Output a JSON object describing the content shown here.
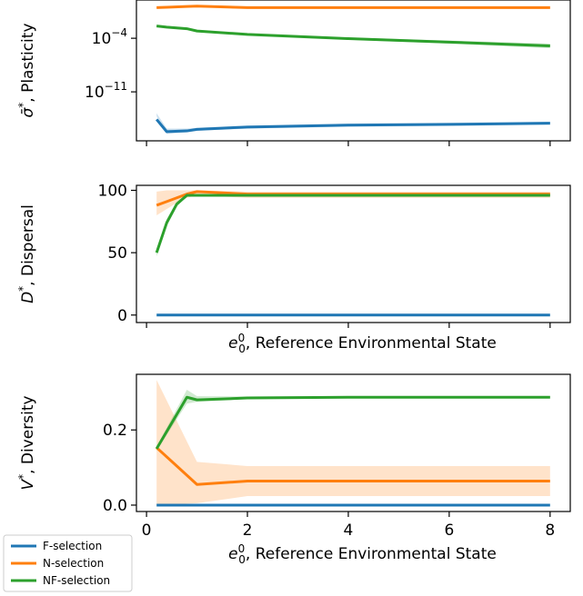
{
  "colors": {
    "F-selection": "#1f77b4",
    "N-selection": "#ff7f0e",
    "NF-selection": "#2ca02c"
  },
  "legend": {
    "placement": "below-left",
    "entries": [
      "F-selection",
      "N-selection",
      "NF-selection"
    ]
  },
  "chart_data": [
    {
      "type": "line",
      "ylabel": "σ̄*, Plasticity",
      "xlabel": "",
      "yscale": "log",
      "xlim": [
        -0.2,
        8.4
      ],
      "ylim_log10": [
        -17.4,
        1.0
      ],
      "xticks": [
        0,
        2,
        4,
        6,
        8
      ],
      "xticklabels_shown": false,
      "yticks": [
        {
          "value_log10": -4,
          "label_base": "10",
          "label_exp": "−4"
        },
        {
          "value_log10": -11,
          "label_base": "10",
          "label_exp": "−11"
        }
      ],
      "series": [
        {
          "name": "F-selection",
          "x": [
            0.2,
            0.4,
            0.8,
            1.0,
            2.0,
            4.0,
            6.0,
            8.0
          ],
          "log10_y": [
            -14.6,
            -16.2,
            -16.1,
            -15.9,
            -15.6,
            -15.35,
            -15.25,
            -15.1
          ],
          "log10_band_low": [
            -14.2,
            -16.5,
            -16.3,
            -16.1,
            -15.8,
            -15.55,
            -15.45,
            -15.3
          ],
          "log10_band_high": [
            -13.8,
            -15.8,
            -15.8,
            -15.7,
            -15.4,
            -15.15,
            -15.05,
            -14.9
          ]
        },
        {
          "name": "N-selection",
          "x": [
            0.2,
            0.4,
            0.8,
            1.0,
            2.0,
            4.0,
            6.0,
            8.0
          ],
          "log10_y": [
            0.0,
            0.05,
            0.15,
            0.2,
            0.0,
            0.0,
            0.0,
            0.0
          ],
          "log10_band_low": [
            -0.15,
            -0.1,
            0.0,
            0.05,
            -0.15,
            -0.15,
            -0.15,
            -0.15
          ],
          "log10_band_high": [
            0.15,
            0.2,
            0.3,
            0.35,
            0.15,
            0.15,
            0.15,
            0.15
          ]
        },
        {
          "name": "NF-selection",
          "x": [
            0.2,
            0.4,
            0.8,
            1.0,
            2.0,
            4.0,
            6.0,
            8.0
          ],
          "log10_y": [
            -2.4,
            -2.55,
            -2.75,
            -3.05,
            -3.5,
            -4.05,
            -4.5,
            -5.0
          ],
          "log10_band_low": [
            -2.55,
            -2.7,
            -2.9,
            -3.2,
            -3.65,
            -4.2,
            -4.7,
            -5.3
          ],
          "log10_band_high": [
            -2.25,
            -2.4,
            -2.6,
            -2.9,
            -3.35,
            -3.9,
            -4.3,
            -4.7
          ]
        }
      ]
    },
    {
      "type": "line",
      "ylabel": "D*, Dispersal",
      "xlabel": "e₀⁰, Reference Environmental State",
      "xlim": [
        -0.2,
        8.4
      ],
      "ylim": [
        -6,
        104
      ],
      "xticks": [
        0,
        2,
        4,
        6,
        8
      ],
      "xticklabels_shown": false,
      "yticks": [
        0,
        50,
        100
      ],
      "series": [
        {
          "name": "F-selection",
          "x": [
            0.2,
            0.4,
            0.6,
            0.8,
            1.0,
            2.0,
            4.0,
            6.0,
            8.0
          ],
          "y": [
            0,
            0,
            0,
            0,
            0,
            0,
            0,
            0,
            0
          ],
          "band_low": [
            0,
            0,
            0,
            0,
            0,
            0,
            0,
            0,
            0
          ],
          "band_high": [
            0,
            0,
            0,
            0,
            0,
            0,
            0,
            0,
            0
          ]
        },
        {
          "name": "N-selection",
          "x": [
            0.2,
            0.4,
            0.6,
            0.8,
            1.0,
            2.0,
            4.0,
            6.0,
            8.0
          ],
          "y": [
            88,
            91,
            94,
            97,
            99,
            97,
            97,
            97,
            97
          ],
          "band_low": [
            80,
            85,
            90,
            94,
            96,
            94,
            94,
            94,
            94
          ],
          "band_high": [
            99,
            100,
            100,
            100,
            100,
            99,
            99,
            99,
            99
          ]
        },
        {
          "name": "NF-selection",
          "x": [
            0.2,
            0.4,
            0.6,
            0.8,
            1.0,
            2.0,
            4.0,
            6.0,
            8.0
          ],
          "y": [
            50,
            74,
            89,
            96,
            96,
            96,
            96,
            96,
            96
          ],
          "band_low": [
            47,
            71,
            87,
            95,
            95,
            95,
            95,
            95,
            95
          ],
          "band_high": [
            53,
            77,
            91,
            97,
            97,
            97,
            97,
            97,
            97
          ]
        }
      ]
    },
    {
      "type": "line",
      "ylabel": "V*, Diversity",
      "xlabel": "e₀⁰, Reference Environmental State",
      "xlim": [
        -0.2,
        8.4
      ],
      "ylim": [
        -0.017,
        0.348
      ],
      "xticks": [
        0,
        2,
        4,
        6,
        8
      ],
      "xticklabels": [
        "0",
        "2",
        "4",
        "6",
        "8"
      ],
      "yticks": [
        0.0,
        0.2
      ],
      "yticklabels": [
        "0.0",
        "0.2"
      ],
      "series": [
        {
          "name": "F-selection",
          "x": [
            0.2,
            1.0,
            2.0,
            4.0,
            6.0,
            8.0
          ],
          "y": [
            0,
            0,
            0,
            0,
            0,
            0
          ],
          "band_low": [
            0,
            0,
            0,
            0,
            0,
            0
          ],
          "band_high": [
            0,
            0,
            0,
            0,
            0,
            0
          ]
        },
        {
          "name": "N-selection",
          "x": [
            0.2,
            1.0,
            2.0,
            4.0,
            6.0,
            8.0
          ],
          "y": [
            0.153,
            0.055,
            0.064,
            0.064,
            0.064,
            0.064
          ],
          "band_low": [
            0.0,
            0.005,
            0.024,
            0.024,
            0.024,
            0.024
          ],
          "band_high": [
            0.333,
            0.115,
            0.104,
            0.104,
            0.104,
            0.104
          ]
        },
        {
          "name": "NF-selection",
          "x": [
            0.2,
            0.8,
            1.0,
            2.0,
            4.0,
            6.0,
            8.0
          ],
          "y": [
            0.15,
            0.287,
            0.28,
            0.285,
            0.287,
            0.287,
            0.287
          ],
          "band_low": [
            0.145,
            0.27,
            0.275,
            0.282,
            0.285,
            0.285,
            0.285
          ],
          "band_high": [
            0.155,
            0.307,
            0.29,
            0.289,
            0.29,
            0.29,
            0.29
          ]
        }
      ]
    }
  ]
}
